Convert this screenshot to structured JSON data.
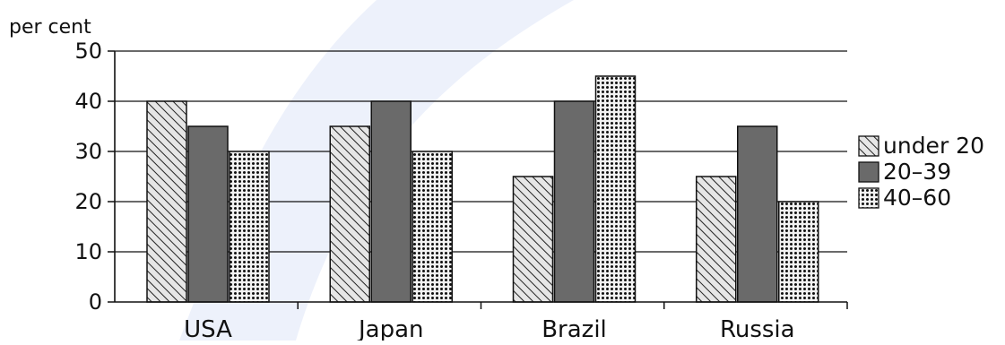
{
  "chart_data": {
    "type": "bar",
    "ylabel": "per cent",
    "categories": [
      "USA",
      "Japan",
      "Brazil",
      "Russia"
    ],
    "series": [
      {
        "name": "under 20",
        "values": [
          40,
          35,
          25,
          25
        ],
        "pattern": "hatch"
      },
      {
        "name": "20–39",
        "values": [
          35,
          40,
          40,
          35
        ],
        "pattern": "solid"
      },
      {
        "name": "40–60",
        "values": [
          30,
          30,
          45,
          20
        ],
        "pattern": "dots"
      }
    ],
    "ylim": [
      0,
      50
    ],
    "yticks": [
      0,
      10,
      20,
      30,
      40,
      50
    ],
    "grid": true,
    "legend_position": "right",
    "colors": {
      "axis": "#111111",
      "solid_fill": "#6a6a6a",
      "hatch_bg": "#e6e6e6",
      "watermark": "#dfe6f7"
    }
  }
}
